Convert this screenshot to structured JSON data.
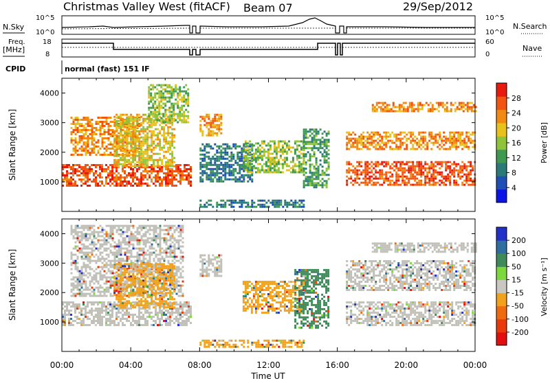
{
  "header": {
    "title": "Christmas Valley West (fitACF)",
    "beam": "Beam 07",
    "date": "29/Sep/2012"
  },
  "strips": {
    "nsky_label": "N.Sky",
    "nsky_ticks": [
      "10^5",
      "10^0"
    ],
    "nsearch_label": "N.Search",
    "nsearch_ticks": [
      "10^5",
      "10^0"
    ],
    "freq_label_line1": "Freq.",
    "freq_label_line2": "[MHz]",
    "freq_ticks": [
      "18",
      "8"
    ],
    "nave_label": "Nave",
    "nave_ticks": [
      "60",
      "0"
    ],
    "cpid_label": "CPID",
    "cpid_value": "normal (fast) 151 IF"
  },
  "colors": {
    "power_scale": [
      "#0a14e6",
      "#1e4fb4",
      "#2a7a7a",
      "#3f9a4f",
      "#8fc43a",
      "#e8c21b",
      "#f08a12",
      "#f25512",
      "#e81a0f"
    ],
    "velocity_scale": [
      "#2130c8",
      "#2e6fa0",
      "#3f8a5a",
      "#7cd83b",
      "#c8c8c0",
      "#f2a21a",
      "#f06a10",
      "#ea3a0c",
      "#e40e0e"
    ],
    "ground_scatter": "#c0c0b8"
  },
  "chart_data": [
    {
      "type": "heatmap",
      "panel": "power",
      "ylabel": "Slant Range [km]",
      "yticks": [
        "1000",
        "2000",
        "3000",
        "4000"
      ],
      "ylim": [
        0,
        4500
      ],
      "xlim": [
        0,
        24
      ],
      "colorbar_label": "Power [dB]",
      "colorbar_ticks": [
        "4",
        "8",
        "12",
        "16",
        "20",
        "24",
        "28"
      ],
      "colorbar_range": [
        0,
        30
      ],
      "bands": [
        {
          "t0": 0.0,
          "t1": 7.5,
          "r0": 900,
          "r1": 1600,
          "level": 28
        },
        {
          "t0": 0.5,
          "t1": 4.5,
          "r0": 1900,
          "r1": 3200,
          "level": 24
        },
        {
          "t0": 3.0,
          "t1": 6.5,
          "r0": 1500,
          "r1": 3300,
          "level": 20
        },
        {
          "t0": 5.0,
          "t1": 7.3,
          "r0": 3000,
          "r1": 4300,
          "level": 16
        },
        {
          "t0": 8.0,
          "t1": 9.3,
          "r0": 2600,
          "r1": 3300,
          "level": 24
        },
        {
          "t0": 8.0,
          "t1": 14.0,
          "r0": 150,
          "r1": 400,
          "level": 8
        },
        {
          "t0": 8.0,
          "t1": 11.0,
          "r0": 1000,
          "r1": 2300,
          "level": 8
        },
        {
          "t0": 10.5,
          "t1": 14.0,
          "r0": 1300,
          "r1": 2400,
          "level": 16
        },
        {
          "t0": 14.0,
          "t1": 15.5,
          "r0": 800,
          "r1": 2800,
          "level": 12
        },
        {
          "t0": 16.5,
          "t1": 24.0,
          "r0": 900,
          "r1": 1700,
          "level": 28
        },
        {
          "t0": 16.5,
          "t1": 24.0,
          "r0": 2100,
          "r1": 2700,
          "level": 24
        },
        {
          "t0": 18.0,
          "t1": 24.0,
          "r0": 3400,
          "r1": 3700,
          "level": 24
        }
      ]
    },
    {
      "type": "heatmap",
      "panel": "velocity",
      "ylabel": "Slant Range [km]",
      "yticks": [
        "1000",
        "2000",
        "3000",
        "4000"
      ],
      "ylim": [
        0,
        4500
      ],
      "xlim": [
        0,
        24
      ],
      "xticks": [
        "00:00",
        "04:00",
        "08:00",
        "12:00",
        "16:00",
        "20:00",
        "00:00"
      ],
      "xlabel": "Time UT",
      "colorbar_label": "Velocity [m s⁻¹]",
      "colorbar_ticks": [
        "200",
        "100",
        "50",
        "15",
        "-15",
        "-50",
        "-100",
        "-200"
      ],
      "bands": [
        {
          "t0": 0.0,
          "t1": 7.5,
          "r0": 900,
          "r1": 1700,
          "level": "gs"
        },
        {
          "t0": 0.5,
          "t1": 7.0,
          "r0": 1900,
          "r1": 4300,
          "level": "gs"
        },
        {
          "t0": 3.0,
          "t1": 6.5,
          "r0": 1500,
          "r1": 3000,
          "level": -50
        },
        {
          "t0": 8.0,
          "t1": 9.3,
          "r0": 2600,
          "r1": 3300,
          "level": "gs"
        },
        {
          "t0": 8.0,
          "t1": 14.0,
          "r0": 150,
          "r1": 400,
          "level": -50
        },
        {
          "t0": 10.5,
          "t1": 14.0,
          "r0": 1300,
          "r1": 2400,
          "level": -50
        },
        {
          "t0": 13.5,
          "t1": 15.5,
          "r0": 800,
          "r1": 2800,
          "level": 50
        },
        {
          "t0": 16.5,
          "t1": 24.0,
          "r0": 900,
          "r1": 1700,
          "level": "gs"
        },
        {
          "t0": 16.5,
          "t1": 24.0,
          "r0": 2100,
          "r1": 3100,
          "level": "gs"
        },
        {
          "t0": 18.0,
          "t1": 24.0,
          "r0": 3400,
          "r1": 3700,
          "level": "gs"
        }
      ]
    }
  ]
}
